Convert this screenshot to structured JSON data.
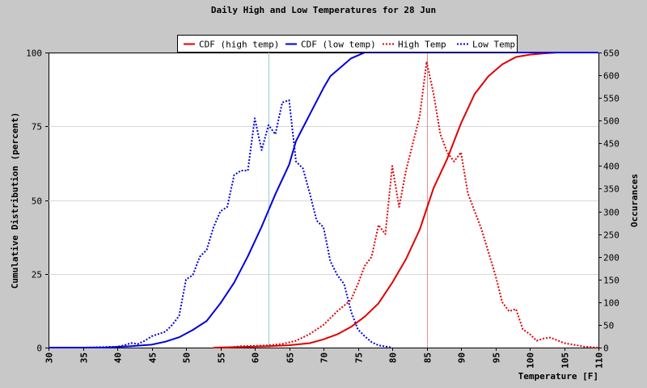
{
  "chart_data": {
    "type": "line",
    "title": "Daily High and Low Temperatures for 28 Jun",
    "xlabel": "Temperature [F]",
    "ylabel": "Cumulative Distribution (percent)",
    "y2label": "Occurances",
    "xlim": [
      30,
      110
    ],
    "ylim": [
      0,
      100
    ],
    "y2lim": [
      0,
      650
    ],
    "xticks": [
      30,
      35,
      40,
      45,
      50,
      55,
      60,
      65,
      70,
      75,
      80,
      85,
      90,
      95,
      100,
      105,
      110
    ],
    "yticks": [
      0,
      25,
      50,
      75,
      100
    ],
    "y2ticks": [
      0,
      50,
      100,
      150,
      200,
      250,
      300,
      350,
      400,
      450,
      500,
      550,
      600,
      650
    ],
    "grid": true,
    "legend_position": "top-center",
    "mean_markers": [
      {
        "series": "low",
        "x": 62,
        "color": "#99cccc"
      },
      {
        "series": "high",
        "x": 85,
        "color": "#e09090"
      }
    ],
    "series": [
      {
        "name": "CDF (high temp)",
        "axis": "left",
        "style": "solid",
        "color": "#e00000",
        "points": [
          [
            54,
            0
          ],
          [
            58,
            0.2
          ],
          [
            62,
            0.5
          ],
          [
            65,
            0.8
          ],
          [
            68,
            1.5
          ],
          [
            70,
            2.8
          ],
          [
            72,
            4.5
          ],
          [
            74,
            7
          ],
          [
            76,
            10.5
          ],
          [
            78,
            15
          ],
          [
            80,
            22
          ],
          [
            82,
            30
          ],
          [
            84,
            40
          ],
          [
            85,
            47
          ],
          [
            86,
            54
          ],
          [
            88,
            64
          ],
          [
            90,
            76
          ],
          [
            92,
            86
          ],
          [
            94,
            92
          ],
          [
            96,
            96
          ],
          [
            98,
            98.5
          ],
          [
            100,
            99.3
          ],
          [
            102,
            99.7
          ],
          [
            104,
            100
          ],
          [
            110,
            100
          ]
        ]
      },
      {
        "name": "CDF (low temp)",
        "axis": "left",
        "style": "solid",
        "color": "#0000dd",
        "points": [
          [
            30,
            0
          ],
          [
            38,
            0
          ],
          [
            42,
            0.5
          ],
          [
            45,
            1
          ],
          [
            47,
            2
          ],
          [
            49,
            3.5
          ],
          [
            51,
            6
          ],
          [
            53,
            9
          ],
          [
            55,
            15
          ],
          [
            57,
            22
          ],
          [
            59,
            31
          ],
          [
            61,
            41
          ],
          [
            63,
            52
          ],
          [
            65,
            62
          ],
          [
            66,
            70
          ],
          [
            68,
            79
          ],
          [
            70,
            88
          ],
          [
            71,
            92
          ],
          [
            73,
            96
          ],
          [
            74,
            98
          ],
          [
            75,
            99
          ],
          [
            76,
            100
          ],
          [
            110,
            100
          ]
        ]
      },
      {
        "name": "High Temp",
        "axis": "right",
        "style": "dotted",
        "color": "#e00000",
        "points": [
          [
            56,
            0
          ],
          [
            58,
            3
          ],
          [
            60,
            4
          ],
          [
            62,
            5
          ],
          [
            64,
            8
          ],
          [
            66,
            15
          ],
          [
            68,
            30
          ],
          [
            70,
            50
          ],
          [
            72,
            80
          ],
          [
            74,
            105
          ],
          [
            75,
            140
          ],
          [
            76,
            180
          ],
          [
            77,
            200
          ],
          [
            78,
            270
          ],
          [
            79,
            250
          ],
          [
            80,
            400
          ],
          [
            81,
            310
          ],
          [
            82,
            390
          ],
          [
            83,
            450
          ],
          [
            84,
            510
          ],
          [
            85,
            630
          ],
          [
            86,
            560
          ],
          [
            87,
            470
          ],
          [
            88,
            430
          ],
          [
            89,
            410
          ],
          [
            90,
            430
          ],
          [
            91,
            340
          ],
          [
            92,
            300
          ],
          [
            93,
            260
          ],
          [
            94,
            210
          ],
          [
            95,
            160
          ],
          [
            96,
            100
          ],
          [
            97,
            80
          ],
          [
            98,
            85
          ],
          [
            99,
            40
          ],
          [
            100,
            30
          ],
          [
            101,
            15
          ],
          [
            102,
            20
          ],
          [
            103,
            22
          ],
          [
            105,
            10
          ],
          [
            108,
            2
          ],
          [
            110,
            0
          ]
        ]
      },
      {
        "name": "Low Temp",
        "axis": "right",
        "style": "dotted",
        "color": "#0000dd",
        "points": [
          [
            35,
            0
          ],
          [
            40,
            2
          ],
          [
            41,
            5
          ],
          [
            42,
            10
          ],
          [
            43,
            8
          ],
          [
            44,
            15
          ],
          [
            45,
            25
          ],
          [
            46,
            30
          ],
          [
            47,
            35
          ],
          [
            48,
            50
          ],
          [
            49,
            70
          ],
          [
            50,
            150
          ],
          [
            51,
            160
          ],
          [
            52,
            200
          ],
          [
            53,
            215
          ],
          [
            54,
            265
          ],
          [
            55,
            300
          ],
          [
            56,
            310
          ],
          [
            57,
            380
          ],
          [
            58,
            390
          ],
          [
            59,
            390
          ],
          [
            60,
            505
          ],
          [
            61,
            435
          ],
          [
            62,
            490
          ],
          [
            63,
            470
          ],
          [
            64,
            540
          ],
          [
            65,
            545
          ],
          [
            66,
            410
          ],
          [
            67,
            395
          ],
          [
            68,
            340
          ],
          [
            69,
            280
          ],
          [
            70,
            265
          ],
          [
            71,
            190
          ],
          [
            72,
            160
          ],
          [
            73,
            140
          ],
          [
            74,
            80
          ],
          [
            75,
            40
          ],
          [
            76,
            25
          ],
          [
            77,
            12
          ],
          [
            78,
            5
          ],
          [
            80,
            0
          ]
        ]
      }
    ]
  }
}
